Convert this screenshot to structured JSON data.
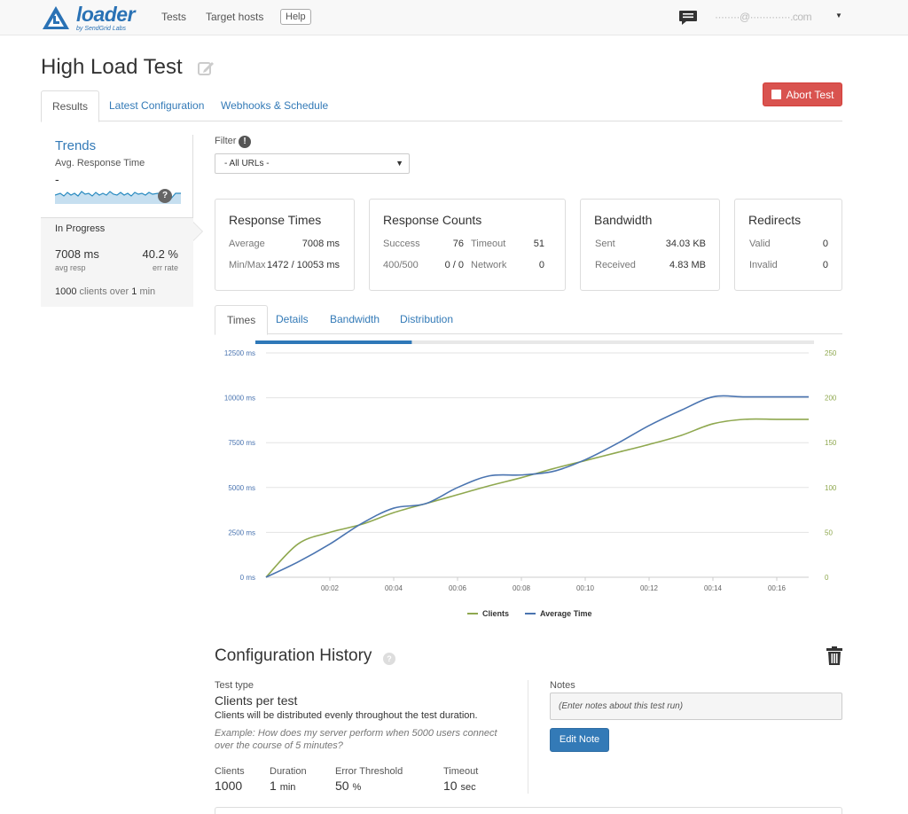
{
  "nav": {
    "logo_word": "loader",
    "logo_sub": "by SendGrid Labs",
    "links": [
      "Tests",
      "Target hosts"
    ],
    "help": "Help",
    "user_email": "········@·············.com"
  },
  "header": {
    "title": "High Load Test",
    "abort_label": "Abort Test"
  },
  "tabs": [
    "Results",
    "Latest Configuration",
    "Webhooks & Schedule"
  ],
  "sidebar": {
    "trends_title": "Trends",
    "trends_sub": "Avg. Response Time",
    "trends_value": "-",
    "help_badge": "?",
    "status": "In Progress",
    "avg_resp_value": "7008 ms",
    "avg_resp_caption": "avg resp",
    "err_rate_value": "40.2 %",
    "err_rate_caption": "err rate",
    "clients_count": "1000",
    "clients_text": "clients over",
    "duration": "1",
    "duration_unit": "min"
  },
  "filter": {
    "label": "Filter",
    "info": "!",
    "selected": "- All URLs -"
  },
  "panels": {
    "response_times": {
      "title": "Response Times",
      "average_label": "Average",
      "average_value": "7008 ms",
      "minmax_label": "Min/Max",
      "minmax_value": "1472 / 10053 ms"
    },
    "response_counts": {
      "title": "Response Counts",
      "success_label": "Success",
      "success_value": "76",
      "timeout_label": "Timeout",
      "timeout_value": "51",
      "err_label": "400/500",
      "err_value": "0 / 0",
      "network_label": "Network",
      "network_value": "0"
    },
    "bandwidth": {
      "title": "Bandwidth",
      "sent_label": "Sent",
      "sent_value": "34.03 KB",
      "received_label": "Received",
      "received_value": "4.83 MB"
    },
    "redirects": {
      "title": "Redirects",
      "valid_label": "Valid",
      "valid_value": "0",
      "invalid_label": "Invalid",
      "invalid_value": "0"
    }
  },
  "chart_tabs": [
    "Times",
    "Details",
    "Bandwidth",
    "Distribution"
  ],
  "progress": 0.28,
  "chart_data": {
    "type": "line",
    "x": [
      "00:00",
      "00:01",
      "00:02",
      "00:03",
      "00:04",
      "00:05",
      "00:06",
      "00:07",
      "00:08",
      "00:09",
      "00:10",
      "00:11",
      "00:12",
      "00:13",
      "00:14",
      "00:15",
      "00:16",
      "00:17"
    ],
    "x_tick_labels": [
      "00:02",
      "00:04",
      "00:06",
      "00:08",
      "00:10",
      "00:12",
      "00:14",
      "00:16"
    ],
    "y_left_ticks": [
      "0 ms",
      "2500 ms",
      "5000 ms",
      "7500 ms",
      "10000 ms",
      "12500 ms"
    ],
    "y_right_ticks": [
      "0",
      "50",
      "100",
      "150",
      "200",
      "250"
    ],
    "ylim_left": [
      0,
      12500
    ],
    "ylim_right": [
      0,
      250
    ],
    "series": [
      {
        "name": "Clients",
        "axis": "right",
        "color": "#8fa84f",
        "values": [
          0,
          37,
          50,
          59,
          72,
          82,
          92,
          102,
          111,
          121,
          130,
          139,
          148,
          158,
          171,
          176,
          176,
          176
        ]
      },
      {
        "name": "Average Time",
        "axis": "left",
        "color": "#4a74b0",
        "values": [
          0,
          850,
          1850,
          3000,
          3850,
          4100,
          5000,
          5650,
          5700,
          5900,
          6550,
          7450,
          8450,
          9300,
          10050,
          10050,
          10050,
          10050
        ]
      }
    ],
    "legend": "bottom-center"
  },
  "config_history": {
    "title": "Configuration History",
    "help": "?",
    "test_type_label": "Test type",
    "test_type": "Clients per test",
    "test_type_desc": "Clients will be distributed evenly throughout the test duration.",
    "example": "Example: How does my server perform when 5000 users connect over the course of 5 minutes?",
    "clients_label": "Clients",
    "clients_value": "1000",
    "duration_label": "Duration",
    "duration_value": "1",
    "duration_unit": "min",
    "error_label": "Error Threshold",
    "error_value": "50",
    "error_unit": "%",
    "timeout_label": "Timeout",
    "timeout_value": "10",
    "timeout_unit": "sec",
    "notes_label": "Notes",
    "notes_placeholder": "(Enter notes about this test run)",
    "edit_note": "Edit Note"
  }
}
